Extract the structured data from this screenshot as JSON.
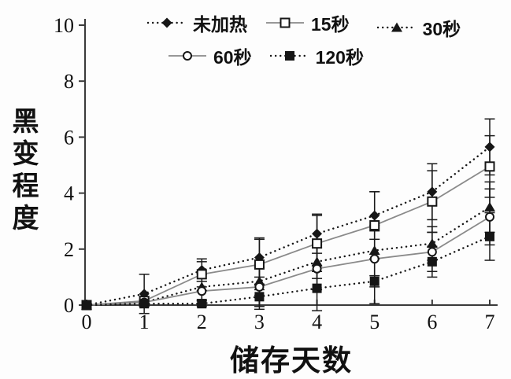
{
  "chart_data": {
    "type": "line",
    "title": "",
    "xlabel": "储存天数",
    "ylabel": "黑变程度",
    "x": [
      0,
      1,
      2,
      3,
      4,
      5,
      6,
      7
    ],
    "xticks": [
      0,
      1,
      2,
      3,
      4,
      5,
      6,
      7
    ],
    "yticks": [
      0,
      2,
      4,
      6,
      8,
      10
    ],
    "xlim": [
      0,
      7
    ],
    "ylim": [
      0,
      10
    ],
    "grid": false,
    "error_bars": true,
    "legend_position": "top",
    "legend_rows": [
      [
        0,
        1,
        2
      ],
      [
        3,
        4
      ]
    ],
    "series": [
      {
        "name": "未加热",
        "marker": "diamond-filled",
        "line": "dotted",
        "values": [
          0,
          0.4,
          1.25,
          1.7,
          2.55,
          3.2,
          4.05,
          5.65
        ],
        "errors": [
          0,
          0.7,
          0.4,
          0.7,
          0.7,
          0.85,
          1.0,
          1.0
        ]
      },
      {
        "name": "15秒",
        "marker": "square-open",
        "line": "solid",
        "values": [
          0,
          0.15,
          1.1,
          1.45,
          2.2,
          2.85,
          3.7,
          4.95
        ],
        "errors": [
          0,
          0.15,
          0.45,
          0.9,
          1.0,
          1.2,
          1.1,
          1.1
        ]
      },
      {
        "name": "30秒",
        "marker": "triangle-filled",
        "line": "dotted",
        "values": [
          0,
          0.1,
          0.65,
          0.85,
          1.55,
          1.95,
          2.2,
          3.5
        ],
        "errors": [
          0,
          0.1,
          0.45,
          0.5,
          0.6,
          0.9,
          0.6,
          0.9
        ]
      },
      {
        "name": "60秒",
        "marker": "circle-open",
        "line": "solid",
        "values": [
          0,
          0.1,
          0.5,
          0.65,
          1.3,
          1.65,
          1.9,
          3.15
        ],
        "errors": [
          0,
          0.1,
          0.35,
          0.7,
          0.75,
          1.0,
          0.7,
          1.0
        ]
      },
      {
        "name": "120秒",
        "marker": "square-filled",
        "line": "dotted",
        "values": [
          0,
          0.05,
          0.05,
          0.3,
          0.6,
          0.85,
          1.55,
          2.45
        ],
        "errors": [
          0,
          0.1,
          0.1,
          0.45,
          0.8,
          0.8,
          0.55,
          0.85
        ]
      }
    ]
  },
  "colors": {
    "background": "#fdfdfd",
    "axis": "#3a3a3a",
    "dotted_line": "#161616",
    "solid_line": "#8a8a8a",
    "marker": "#161616",
    "marker_open_fill": "#ffffff",
    "error_bar": "#1a1a1a",
    "text": "#111111"
  }
}
